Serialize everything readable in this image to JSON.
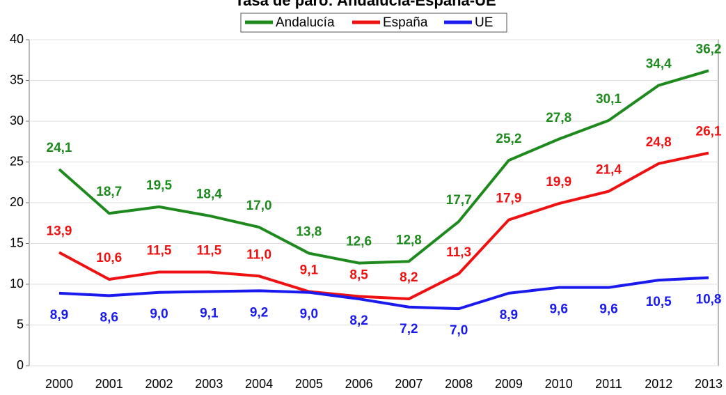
{
  "chart_data": {
    "type": "line",
    "title": "Tasa de paro: Andalucía-España-UE",
    "categories": [
      "2000",
      "2001",
      "2002",
      "2003",
      "2004",
      "2005",
      "2006",
      "2007",
      "2008",
      "2009",
      "2010",
      "2011",
      "2012",
      "2013"
    ],
    "series": [
      {
        "name": "Andalucía",
        "color": "#1e8a1e",
        "values": [
          24.1,
          18.7,
          19.5,
          18.4,
          17.0,
          13.8,
          12.6,
          12.8,
          17.7,
          25.2,
          27.8,
          30.1,
          34.4,
          36.2
        ],
        "value_labels": [
          "24,1",
          "18,7",
          "19,5",
          "18,4",
          "17,0",
          "13,8",
          "12,6",
          "12,8",
          "17,7",
          "25,2",
          "27,8",
          "30,1",
          "34,4",
          "36,2"
        ]
      },
      {
        "name": "España",
        "color": "#ee1111",
        "values": [
          13.9,
          10.6,
          11.5,
          11.5,
          11.0,
          9.1,
          8.5,
          8.2,
          11.3,
          17.9,
          19.9,
          21.4,
          24.8,
          26.1
        ],
        "value_labels": [
          "13,9",
          "10,6",
          "11,5",
          "11,5",
          "11,0",
          "9,1",
          "8,5",
          "8,2",
          "11,3",
          "17,9",
          "19,9",
          "21,4",
          "24,8",
          "26,1"
        ]
      },
      {
        "name": "UE",
        "color": "#1a1aee",
        "values": [
          8.9,
          8.6,
          9.0,
          9.1,
          9.2,
          9.0,
          8.2,
          7.2,
          7.0,
          8.9,
          9.6,
          9.6,
          10.5,
          10.8
        ],
        "value_labels": [
          "8,9",
          "8,6",
          "9,0",
          "9,1",
          "9,2",
          "9,0",
          "8,2",
          "7,2",
          "7,0",
          "8,9",
          "9,6",
          "9,6",
          "10,5",
          "10,8"
        ]
      }
    ],
    "ylim": [
      0,
      40
    ],
    "yticks": [
      0,
      5,
      10,
      15,
      20,
      25,
      30,
      35,
      40
    ],
    "grid": true,
    "legend": "top"
  }
}
